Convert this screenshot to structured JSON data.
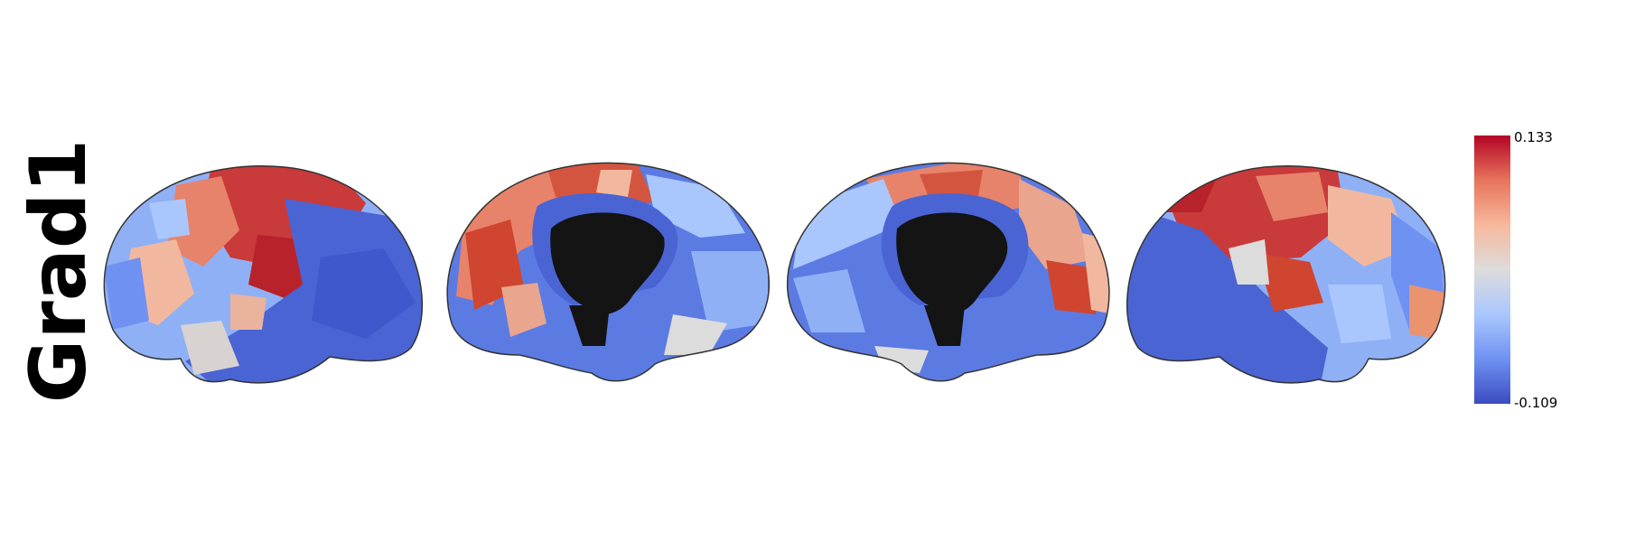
{
  "row_label": "Grad1",
  "colorbar": {
    "max_label": "0.133",
    "min_label": "-0.109",
    "colormap": "coolwarm",
    "colors": [
      "#3b4cc0",
      "#6f91f2",
      "#aac7fd",
      "#dddcdc",
      "#f7b89c",
      "#e7745b",
      "#b40426"
    ]
  },
  "views": [
    "left-lateral",
    "left-medial",
    "right-medial",
    "right-lateral"
  ]
}
